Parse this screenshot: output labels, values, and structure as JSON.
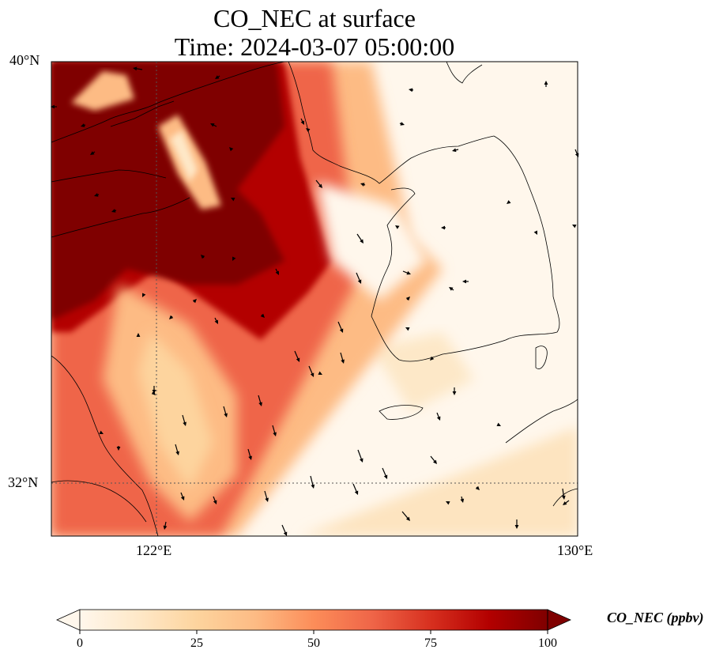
{
  "title": {
    "line1": "CO_NEC at surface",
    "line2": "Time: 2024-03-07 05:00:00"
  },
  "map": {
    "lon_range": [
      120.4,
      130.0
    ],
    "lat_range": [
      31.2,
      40.0
    ],
    "projection": "PlateCarree",
    "gridlines": "dotted",
    "lat_ticks": [
      {
        "value": 40,
        "label": "40°N"
      },
      {
        "value": 32,
        "label": "32°N"
      }
    ],
    "lon_ticks": [
      {
        "value": 122,
        "label": "122°E"
      },
      {
        "value": 130,
        "label": "130°E"
      }
    ]
  },
  "colorbar": {
    "label": "CO_NEC (ppbv)",
    "cmap": "OrRd",
    "extend": "both",
    "range": [
      0,
      100
    ],
    "ticks": [
      {
        "value": 0,
        "label": "0"
      },
      {
        "value": 25,
        "label": "25"
      },
      {
        "value": 50,
        "label": "50"
      },
      {
        "value": 75,
        "label": "75"
      },
      {
        "value": 100,
        "label": "100"
      }
    ]
  },
  "colors": {
    "ocean_low": "#fff7ec",
    "mid": "#fdbb84",
    "high": "#e34a33",
    "max": "#7f0000",
    "coastline": "#000000",
    "arrow": "#000000"
  },
  "icons": [
    "wind-vector-arrow-icon"
  ]
}
